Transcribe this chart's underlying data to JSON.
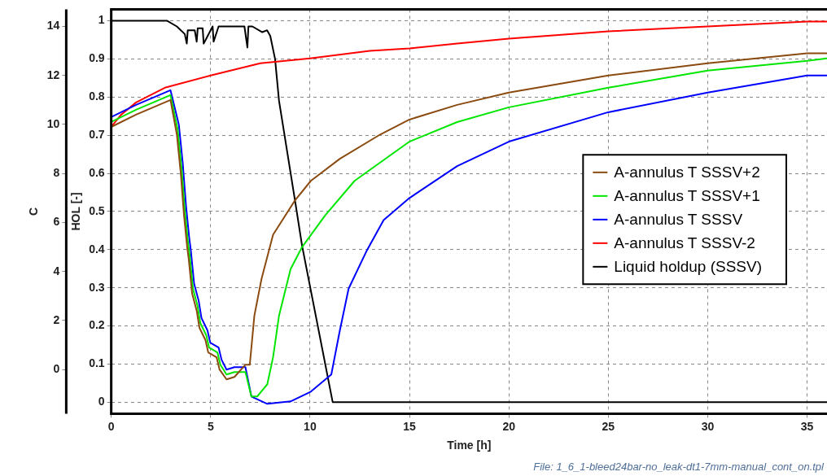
{
  "chart_data": {
    "type": "line",
    "xlabel": "Time [h]",
    "ylabel": "C",
    "y2label": "HOL [-]",
    "xlim": [
      0,
      36
    ],
    "xticks": [
      0,
      5,
      10,
      15,
      20,
      25,
      30,
      35
    ],
    "ylim": [
      -1.8,
      14.7
    ],
    "yticks": [
      0,
      2,
      4,
      6,
      8,
      10,
      12,
      14
    ],
    "y2lim": [
      -0.03,
      1.03
    ],
    "y2ticks": [
      0,
      0.1,
      0.2,
      0.3,
      0.4,
      0.5,
      0.6,
      0.7,
      0.8,
      0.9,
      1
    ],
    "grid": true,
    "legend": "right",
    "marker": "none",
    "line_style": "solid",
    "annotations": [
      "File: 1_6_1-bleed24bar-no_leak-dt1-7mm-manual_cont_on.tpl"
    ],
    "series": [
      {
        "name": "A-annulus T SSSV+2",
        "color": "#8b4a0f",
        "x": [
          0,
          1.25,
          2.98,
          3.3,
          3.5,
          3.66,
          3.82,
          3.9,
          4.07,
          4.3,
          4.44,
          4.74,
          4.88,
          5.3,
          5.45,
          5.8,
          6.2,
          6.75,
          6.97,
          7.2,
          7.56,
          8.14,
          9.24,
          10.04,
          11.5,
          13.55,
          15,
          17.4,
          20,
          25,
          30,
          35,
          36
        ],
        "values": [
          9.9,
          10.4,
          11.0,
          9.6,
          8.0,
          6.3,
          5.0,
          4.5,
          3.1,
          2.4,
          1.7,
          1.2,
          0.7,
          0.5,
          0.0,
          -0.4,
          -0.3,
          0.2,
          0.2,
          2.2,
          3.7,
          5.5,
          6.9,
          7.7,
          8.6,
          9.6,
          10.2,
          10.8,
          11.3,
          12.0,
          12.5,
          12.9,
          12.9
        ]
      },
      {
        "name": "A-annulus T SSSV+1",
        "color": "#00e600",
        "x": [
          0,
          1.25,
          2.98,
          3.34,
          3.54,
          3.7,
          3.86,
          3.94,
          4.11,
          4.34,
          4.48,
          4.78,
          4.92,
          5.34,
          5.49,
          5.8,
          6.2,
          6.75,
          7.05,
          7.34,
          7.85,
          8.14,
          8.44,
          9.02,
          9.6,
          10.77,
          12.24,
          15,
          17.4,
          20,
          25,
          30,
          35,
          36
        ],
        "values": [
          10.1,
          10.6,
          11.2,
          9.8,
          8.2,
          6.5,
          5.2,
          4.7,
          3.3,
          2.6,
          1.9,
          1.4,
          0.9,
          0.7,
          0.2,
          -0.2,
          -0.1,
          -0.1,
          -1.1,
          -1.1,
          -0.6,
          0.5,
          2.2,
          4.1,
          5.0,
          6.3,
          7.7,
          9.3,
          10.1,
          10.7,
          11.5,
          12.2,
          12.6,
          12.7
        ]
      },
      {
        "name": "A-annulus T SSSV",
        "color": "#0000ff",
        "x": [
          0,
          1.25,
          2.98,
          3.4,
          3.6,
          3.76,
          3.92,
          4.0,
          4.17,
          4.4,
          4.54,
          4.84,
          4.98,
          5.4,
          5.55,
          5.8,
          6.2,
          6.75,
          7.05,
          7.85,
          9.02,
          10.04,
          11.07,
          11.5,
          11.94,
          12.82,
          13.7,
          15,
          17.4,
          20,
          25,
          30,
          35,
          36
        ],
        "values": [
          10.3,
          10.8,
          11.4,
          10.0,
          8.4,
          6.7,
          5.4,
          4.9,
          3.5,
          2.8,
          2.1,
          1.6,
          1.1,
          0.9,
          0.4,
          0.0,
          0.1,
          0.1,
          -1.1,
          -1.4,
          -1.3,
          -0.9,
          -0.2,
          1.6,
          3.3,
          4.8,
          6.1,
          7.0,
          8.3,
          9.3,
          10.5,
          11.3,
          12.0,
          12.0
        ]
      },
      {
        "name": "A-annulus T SSSV-2",
        "color": "#ff0000",
        "x": [
          0,
          0.5,
          1.25,
          2.7,
          5,
          7.5,
          10,
          13,
          15,
          17.4,
          20,
          25,
          30,
          35,
          36
        ],
        "values": [
          9.9,
          10.4,
          10.9,
          11.5,
          12.0,
          12.5,
          12.7,
          13.0,
          13.1,
          13.3,
          13.5,
          13.8,
          14.0,
          14.2,
          14.2
        ]
      },
      {
        "name": "Liquid holdup (SSSV)",
        "color": "#000000",
        "axis": "y2",
        "x": [
          0,
          2.8,
          3.3,
          3.7,
          3.8,
          3.85,
          4.2,
          4.3,
          4.35,
          4.6,
          4.65,
          5.1,
          5.15,
          5.4,
          6.7,
          6.85,
          6.9,
          7.1,
          7.6,
          7.84,
          8.0,
          8.24,
          8.44,
          9.24,
          9.6,
          11.14,
          36
        ],
        "values": [
          1.0,
          1.0,
          0.985,
          0.965,
          0.94,
          0.975,
          0.975,
          0.945,
          0.98,
          0.98,
          0.94,
          0.985,
          0.945,
          0.985,
          0.985,
          0.93,
          0.985,
          0.985,
          0.97,
          0.975,
          0.96,
          0.9,
          0.79,
          0.53,
          0.41,
          0,
          0
        ]
      }
    ]
  }
}
